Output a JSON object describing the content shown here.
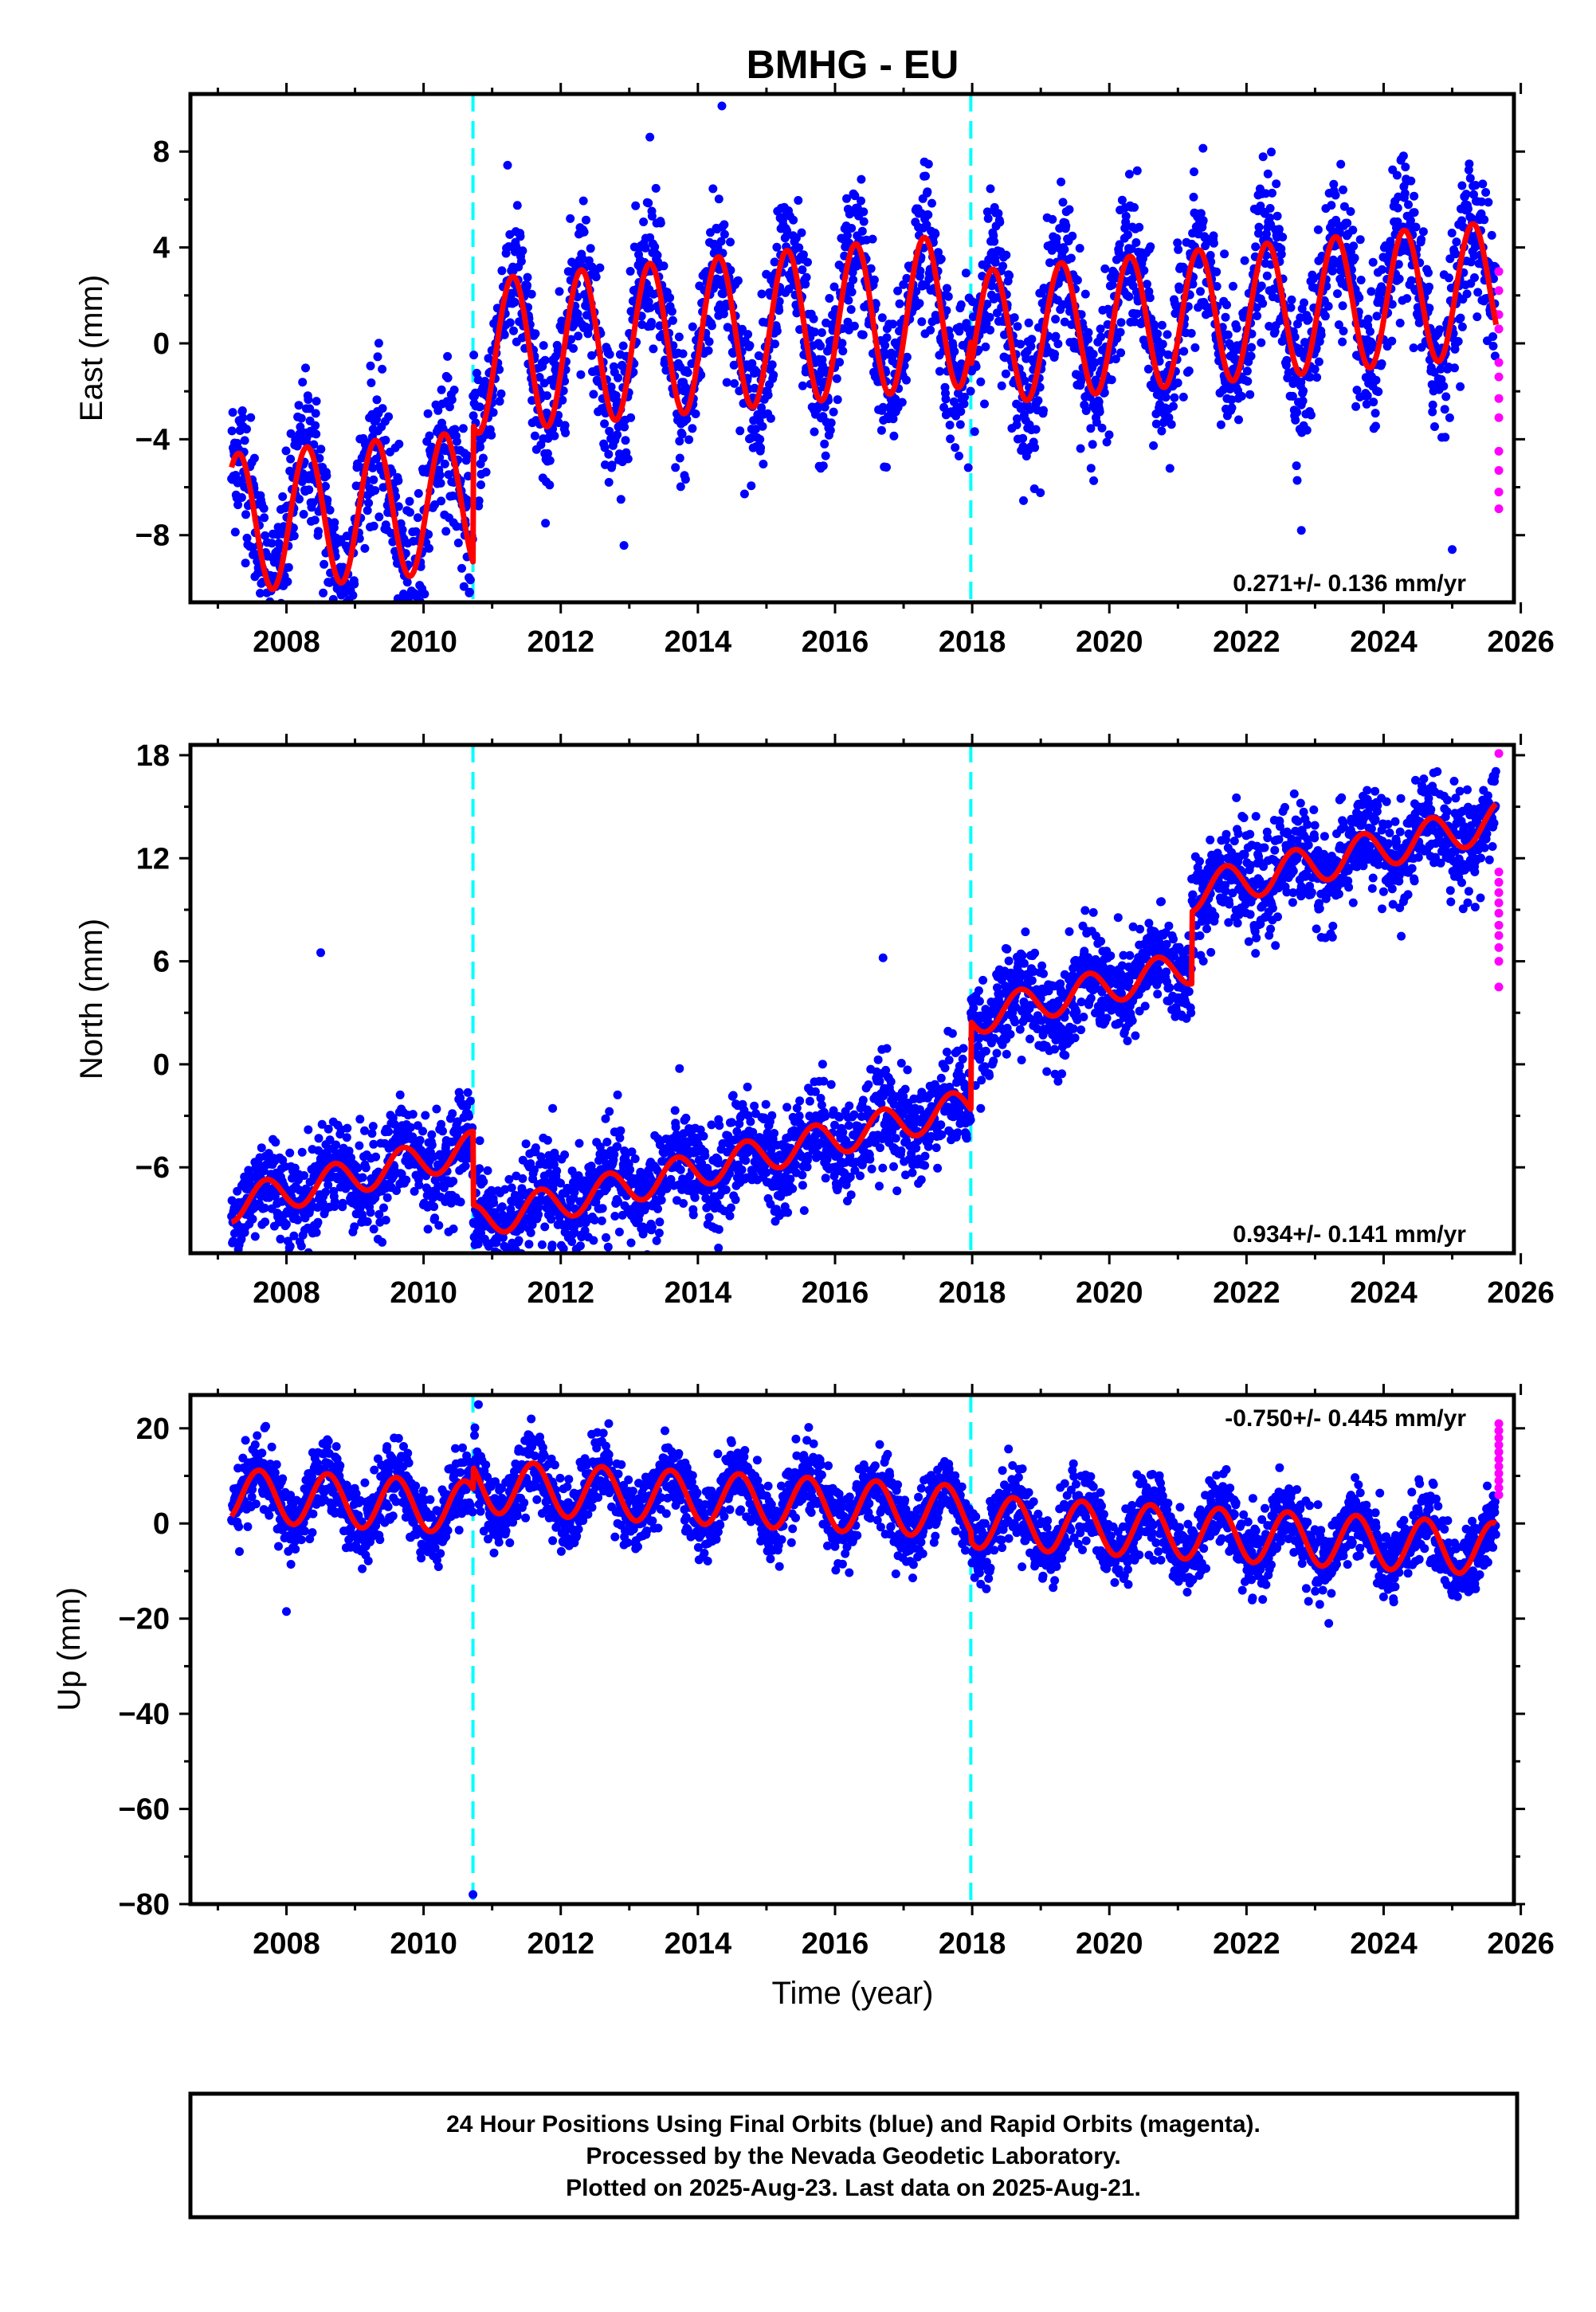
{
  "title": "BMHG - EU",
  "x_label": "Time (year)",
  "colors": {
    "final_orbits": "#0000ff",
    "rapid_orbits": "#ff00ff",
    "model_fit": "#ff0000",
    "event_lines": "#00ffff"
  },
  "chart_data": [
    {
      "type": "scatter",
      "name": "east",
      "ylabel": "East (mm)",
      "xlim": [
        2006.6,
        2025.9
      ],
      "ylim": [
        -10.8,
        10.4
      ],
      "x_ticks": [
        2008,
        2010,
        2012,
        2014,
        2016,
        2018,
        2020,
        2022,
        2024,
        2026
      ],
      "y_ticks": [
        -8,
        -4,
        0,
        4,
        8
      ],
      "y_tick_labels": [
        "−8",
        "−4",
        "0",
        "4",
        "8"
      ],
      "rate_label": "0.271+/- 0.136 mm/yr",
      "rate_position": "bottom-right",
      "event_lines_x": [
        2010.72,
        2017.98
      ],
      "data_start": 2007.2,
      "data_end": 2025.64,
      "model": {
        "segments": [
          {
            "start": 2007.2,
            "end": 2010.72,
            "offset": -5.0,
            "amplitude": 2.9,
            "phase": 0.05
          },
          {
            "start": 2010.72,
            "end": 2017.98,
            "offset": 1.0,
            "amplitude": 3.2,
            "phase": 0.05
          },
          {
            "start": 2017.98,
            "end": 2025.64,
            "offset": -0.2,
            "amplitude": 2.8,
            "phase": 0.05
          }
        ],
        "trend_mm_per_yr": 0.271,
        "trend_ref_year": 2016.5
      },
      "noise_mm": 1.7,
      "rapid_points": [
        [
          2025.68,
          3.0
        ],
        [
          2025.68,
          2.2
        ],
        [
          2025.68,
          1.2
        ],
        [
          2025.68,
          0.6
        ],
        [
          2025.68,
          -0.8
        ],
        [
          2025.68,
          -1.4
        ],
        [
          2025.68,
          -2.3
        ],
        [
          2025.68,
          -3.1
        ],
        [
          2025.68,
          -4.5
        ],
        [
          2025.68,
          -5.3
        ],
        [
          2025.68,
          -6.2
        ],
        [
          2025.68,
          -6.9
        ]
      ],
      "outliers": [
        [
          2014.35,
          9.9
        ],
        [
          2013.3,
          8.6
        ],
        [
          2025.0,
          -8.6
        ],
        [
          2008.8,
          -10.5
        ],
        [
          2022.8,
          -7.8
        ]
      ]
    },
    {
      "type": "scatter",
      "name": "north",
      "ylabel": "North (mm)",
      "xlim": [
        2006.6,
        2025.9
      ],
      "ylim": [
        -11.0,
        18.6
      ],
      "x_ticks": [
        2008,
        2010,
        2012,
        2014,
        2016,
        2018,
        2020,
        2022,
        2024,
        2026
      ],
      "y_ticks": [
        -6,
        0,
        6,
        12,
        18
      ],
      "y_tick_labels": [
        "−6",
        "0",
        "6",
        "12",
        "18"
      ],
      "rate_label": "0.934+/- 0.141 mm/yr",
      "rate_position": "bottom-right",
      "event_lines_x": [
        2010.72,
        2017.98
      ],
      "data_start": 2007.2,
      "data_end": 2025.64,
      "model": {
        "segments": [
          {
            "start": 2007.2,
            "end": 2010.72,
            "offset": 0.5,
            "amplitude": 1.0,
            "phase": 0.45
          },
          {
            "start": 2010.72,
            "end": 2017.98,
            "offset": -3.8,
            "amplitude": 1.0,
            "phase": 0.45
          },
          {
            "start": 2017.98,
            "end": 2021.2,
            "offset": 1.3,
            "amplitude": 1.0,
            "phase": 0.45
          },
          {
            "start": 2021.2,
            "end": 2025.64,
            "offset": 5.6,
            "amplitude": 1.1,
            "phase": 0.45
          }
        ],
        "trend_mm_per_yr": 0.934,
        "trend_ref_year": 2016.5
      },
      "noise_mm": 1.6,
      "rapid_points": [
        [
          2025.68,
          18.1
        ],
        [
          2025.68,
          11.2
        ],
        [
          2025.68,
          10.6
        ],
        [
          2025.68,
          10.0
        ],
        [
          2025.68,
          9.4
        ],
        [
          2025.68,
          8.8
        ],
        [
          2025.68,
          8.1
        ],
        [
          2025.68,
          7.5
        ],
        [
          2025.68,
          6.8
        ],
        [
          2025.68,
          6.0
        ],
        [
          2025.68,
          4.5
        ]
      ],
      "outliers": [
        [
          2008.5,
          6.5
        ],
        [
          2014.3,
          -10.7
        ],
        [
          2023.8,
          12.7
        ],
        [
          2012.2,
          -9.8
        ],
        [
          2016.7,
          6.2
        ]
      ]
    },
    {
      "type": "scatter",
      "name": "up",
      "ylabel": "Up (mm)",
      "xlim": [
        2006.6,
        2025.9
      ],
      "ylim": [
        -80.0,
        27.0
      ],
      "x_ticks": [
        2008,
        2010,
        2012,
        2014,
        2016,
        2018,
        2020,
        2022,
        2024,
        2026
      ],
      "y_ticks": [
        -80,
        -60,
        -40,
        -20,
        0,
        20
      ],
      "y_tick_labels": [
        "−80",
        "−60",
        "−40",
        "−20",
        "0",
        "20"
      ],
      "rate_label": "-0.750+/- 0.445 mm/yr",
      "rate_position": "top-right",
      "event_lines_x": [
        2010.72,
        2017.98
      ],
      "data_start": 2007.2,
      "data_end": 2025.64,
      "model": {
        "segments": [
          {
            "start": 2007.2,
            "end": 2010.72,
            "offset": -1.0,
            "amplitude": 5.5,
            "phase": 0.35
          },
          {
            "start": 2010.72,
            "end": 2017.98,
            "offset": 3.5,
            "amplitude": 5.5,
            "phase": 0.35
          },
          {
            "start": 2017.98,
            "end": 2025.64,
            "offset": 1.5,
            "amplitude": 5.5,
            "phase": 0.35
          }
        ],
        "trend_mm_per_yr": -0.75,
        "trend_ref_year": 2016.5
      },
      "noise_mm": 4.2,
      "rapid_points": [
        [
          2025.68,
          21.0
        ],
        [
          2025.68,
          19.5
        ],
        [
          2025.68,
          18.0
        ],
        [
          2025.68,
          16.5
        ],
        [
          2025.68,
          15.0
        ],
        [
          2025.68,
          13.5
        ],
        [
          2025.68,
          12.0
        ],
        [
          2025.68,
          10.5
        ],
        [
          2025.68,
          9.0
        ],
        [
          2025.68,
          7.5
        ],
        [
          2025.68,
          6.0
        ]
      ],
      "outliers": [
        [
          2010.8,
          25.0
        ],
        [
          2010.72,
          -78.0
        ],
        [
          2023.2,
          -21.0
        ],
        [
          2008.0,
          -18.5
        ],
        [
          2012.7,
          21.0
        ]
      ]
    }
  ],
  "caption": {
    "line1": "24 Hour Positions Using Final Orbits (blue) and Rapid Orbits (magenta).",
    "line2": "Processed by the Nevada Geodetic Laboratory.",
    "line3": "Plotted on 2025-Aug-23. Last data on 2025-Aug-21."
  }
}
